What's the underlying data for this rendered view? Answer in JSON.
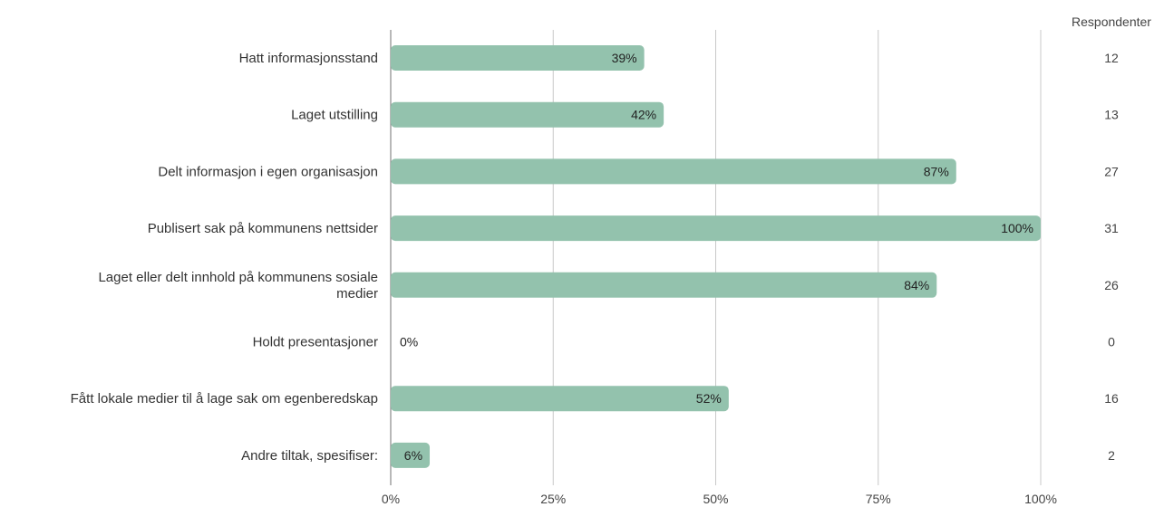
{
  "chart_data": {
    "type": "bar",
    "orientation": "horizontal",
    "categories": [
      "Hatt informasjonsstand",
      "Laget utstilling",
      "Delt informasjon i egen organisasjon",
      "Publisert sak på kommunens nettsider",
      [
        "Laget eller delt innhold på kommunens sosiale",
        "medier"
      ],
      "Holdt presentasjoner",
      "Fått lokale medier til å lage sak om egenberedskap",
      "Andre tiltak, spesifiser:"
    ],
    "values": [
      39,
      42,
      87,
      100,
      84,
      0,
      52,
      6
    ],
    "value_labels": [
      "39%",
      "42%",
      "87%",
      "100%",
      "84%",
      "0%",
      "52%",
      "6%"
    ],
    "respondents_header": "Respondenter",
    "respondents": [
      "12",
      "13",
      "27",
      "31",
      "26",
      "0",
      "16",
      "2"
    ],
    "xlim": [
      0,
      100
    ],
    "x_ticks": [
      0,
      25,
      50,
      75,
      100
    ],
    "x_tick_labels": [
      "0%",
      "25%",
      "50%",
      "75%",
      "100%"
    ],
    "grid": true,
    "bar_color": "#93c2ad",
    "grid_color": "#c8c8c8",
    "axis_color": "#888888"
  }
}
